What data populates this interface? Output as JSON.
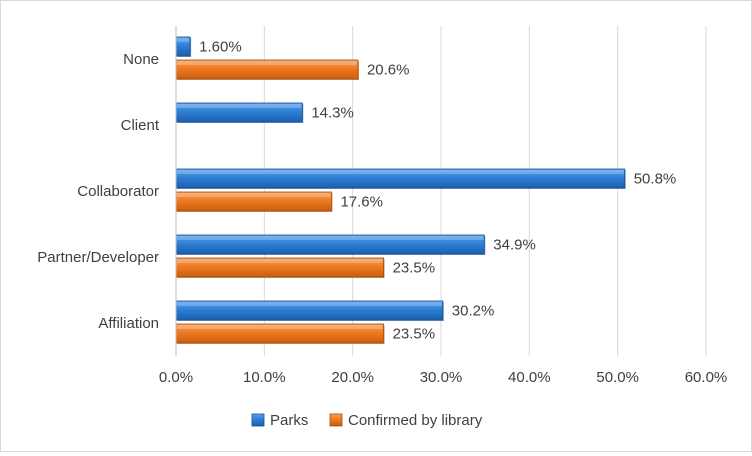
{
  "chart_data": {
    "type": "bar",
    "orientation": "horizontal",
    "categories": [
      "None",
      "Client",
      "Collaborator",
      "Partner/Developer",
      "Affiliation"
    ],
    "series": [
      {
        "name": "Parks",
        "values": [
          1.6,
          14.3,
          50.8,
          34.9,
          30.2
        ],
        "labels": [
          "1.60%",
          "14.3%",
          "50.8%",
          "34.9%",
          "30.2%"
        ],
        "color": "#2f7fd6"
      },
      {
        "name": "Confirmed by library",
        "values": [
          20.6,
          null,
          17.6,
          23.5,
          23.5
        ],
        "labels": [
          "20.6%",
          "",
          "17.6%",
          "23.5%",
          "23.5%"
        ],
        "color": "#ee7b22"
      }
    ],
    "x_ticks": [
      "0.0%",
      "10.0%",
      "20.0%",
      "30.0%",
      "40.0%",
      "50.0%",
      "60.0%"
    ],
    "xlim": [
      0,
      60
    ],
    "grid": true,
    "legend_position": "bottom",
    "title": "",
    "xlabel": "",
    "ylabel": ""
  }
}
